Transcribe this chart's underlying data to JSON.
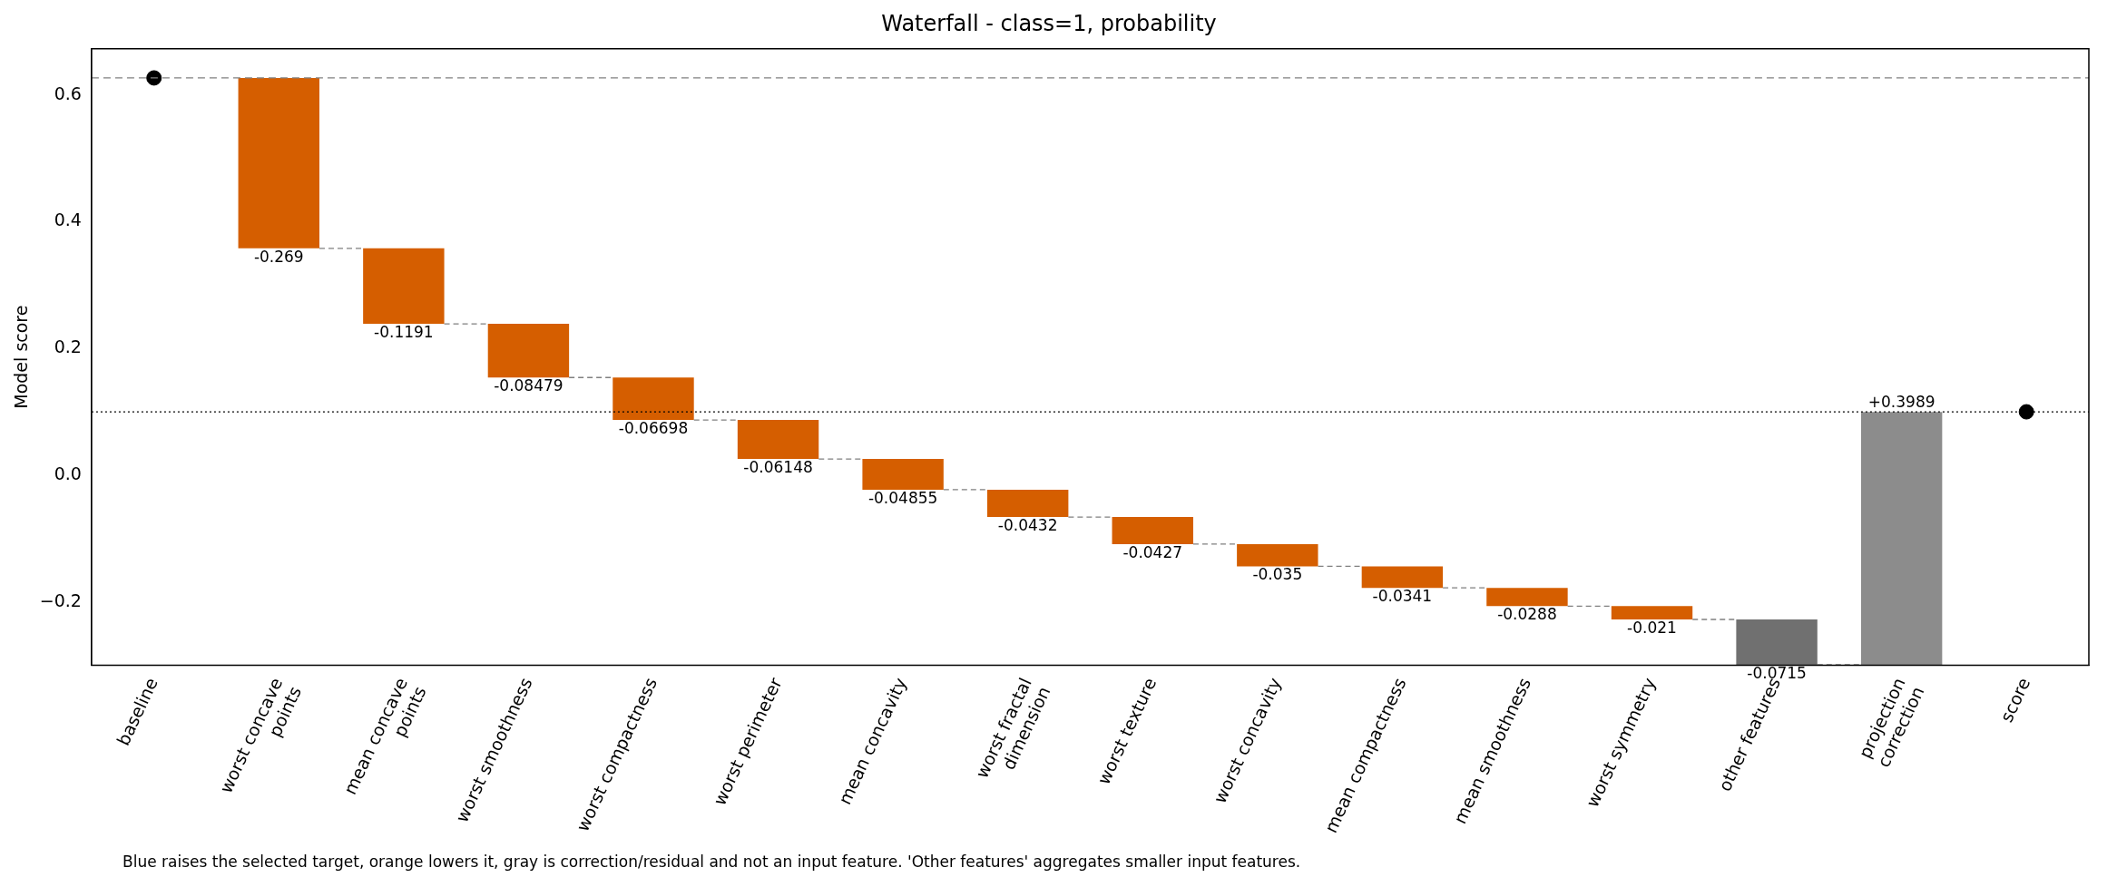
{
  "chart_data": {
    "type": "bar",
    "title": "Waterfall - class=1, probability",
    "ylabel": "Model score",
    "categories": [
      "baseline",
      "worst concave\npoints",
      "mean concave\npoints",
      "worst smoothness",
      "worst compactness",
      "worst perimeter",
      "mean concavity",
      "worst fractal\ndimension",
      "worst texture",
      "worst concavity",
      "mean compactness",
      "mean smoothness",
      "worst symmetry",
      "other features",
      "projection\ncorrection",
      "score"
    ],
    "series": [
      {
        "values": [
          null,
          -0.269,
          -0.1191,
          -0.08479,
          -0.06698,
          -0.06148,
          -0.04855,
          -0.0432,
          -0.0427,
          -0.035,
          -0.0341,
          -0.0288,
          -0.021,
          -0.0715,
          0.3989,
          null
        ],
        "base": [
          null,
          0.627,
          0.358,
          0.2389,
          0.1541,
          0.0871,
          0.0257,
          -0.0229,
          -0.0661,
          -0.1088,
          -0.1438,
          -0.1779,
          -0.2067,
          -0.2277,
          -0.2992,
          null
        ],
        "colors": [
          null,
          "#d55e00",
          "#d55e00",
          "#d55e00",
          "#d55e00",
          "#d55e00",
          "#d55e00",
          "#d55e00",
          "#d55e00",
          "#d55e00",
          "#d55e00",
          "#d55e00",
          "#d55e00",
          "#707070",
          "#8c8c8c",
          null
        ],
        "value_labels": [
          null,
          "-0.269",
          "-0.1191",
          "-0.08479",
          "-0.06698",
          "-0.06148",
          "-0.04855",
          "-0.0432",
          "-0.0427",
          "-0.035",
          "-0.0341",
          "-0.0288",
          "-0.021",
          "-0.0715",
          "+0.3989",
          null
        ]
      },
      {
        "type": "scatter",
        "x": [
          "baseline",
          "score"
        ],
        "values": [
          0.627,
          0.1
        ],
        "color": "#000000",
        "marker": "circle"
      }
    ],
    "ylim": [
      -0.3,
      0.673
    ],
    "yticks": [
      {
        "value": -0.2,
        "label": "−0.2"
      },
      {
        "value": 0,
        "label": "0.0"
      },
      {
        "value": 0.2,
        "label": "0.2"
      },
      {
        "value": 0.4,
        "label": "0.4"
      },
      {
        "value": 0.6,
        "label": "0.6"
      }
    ],
    "ref_lines": [
      {
        "axis": "y",
        "value": 0.627,
        "color": "#808080",
        "line_style": "dashed"
      },
      {
        "axis": "y",
        "value": 0.1,
        "color": "#000000",
        "line_style": "dotted"
      }
    ],
    "grid": false,
    "legend": false,
    "annotations": [
      "Blue raises the selected target, orange lowers it, gray is correction/residual and not an input feature. 'Other features' aggregates smaller input features."
    ]
  }
}
